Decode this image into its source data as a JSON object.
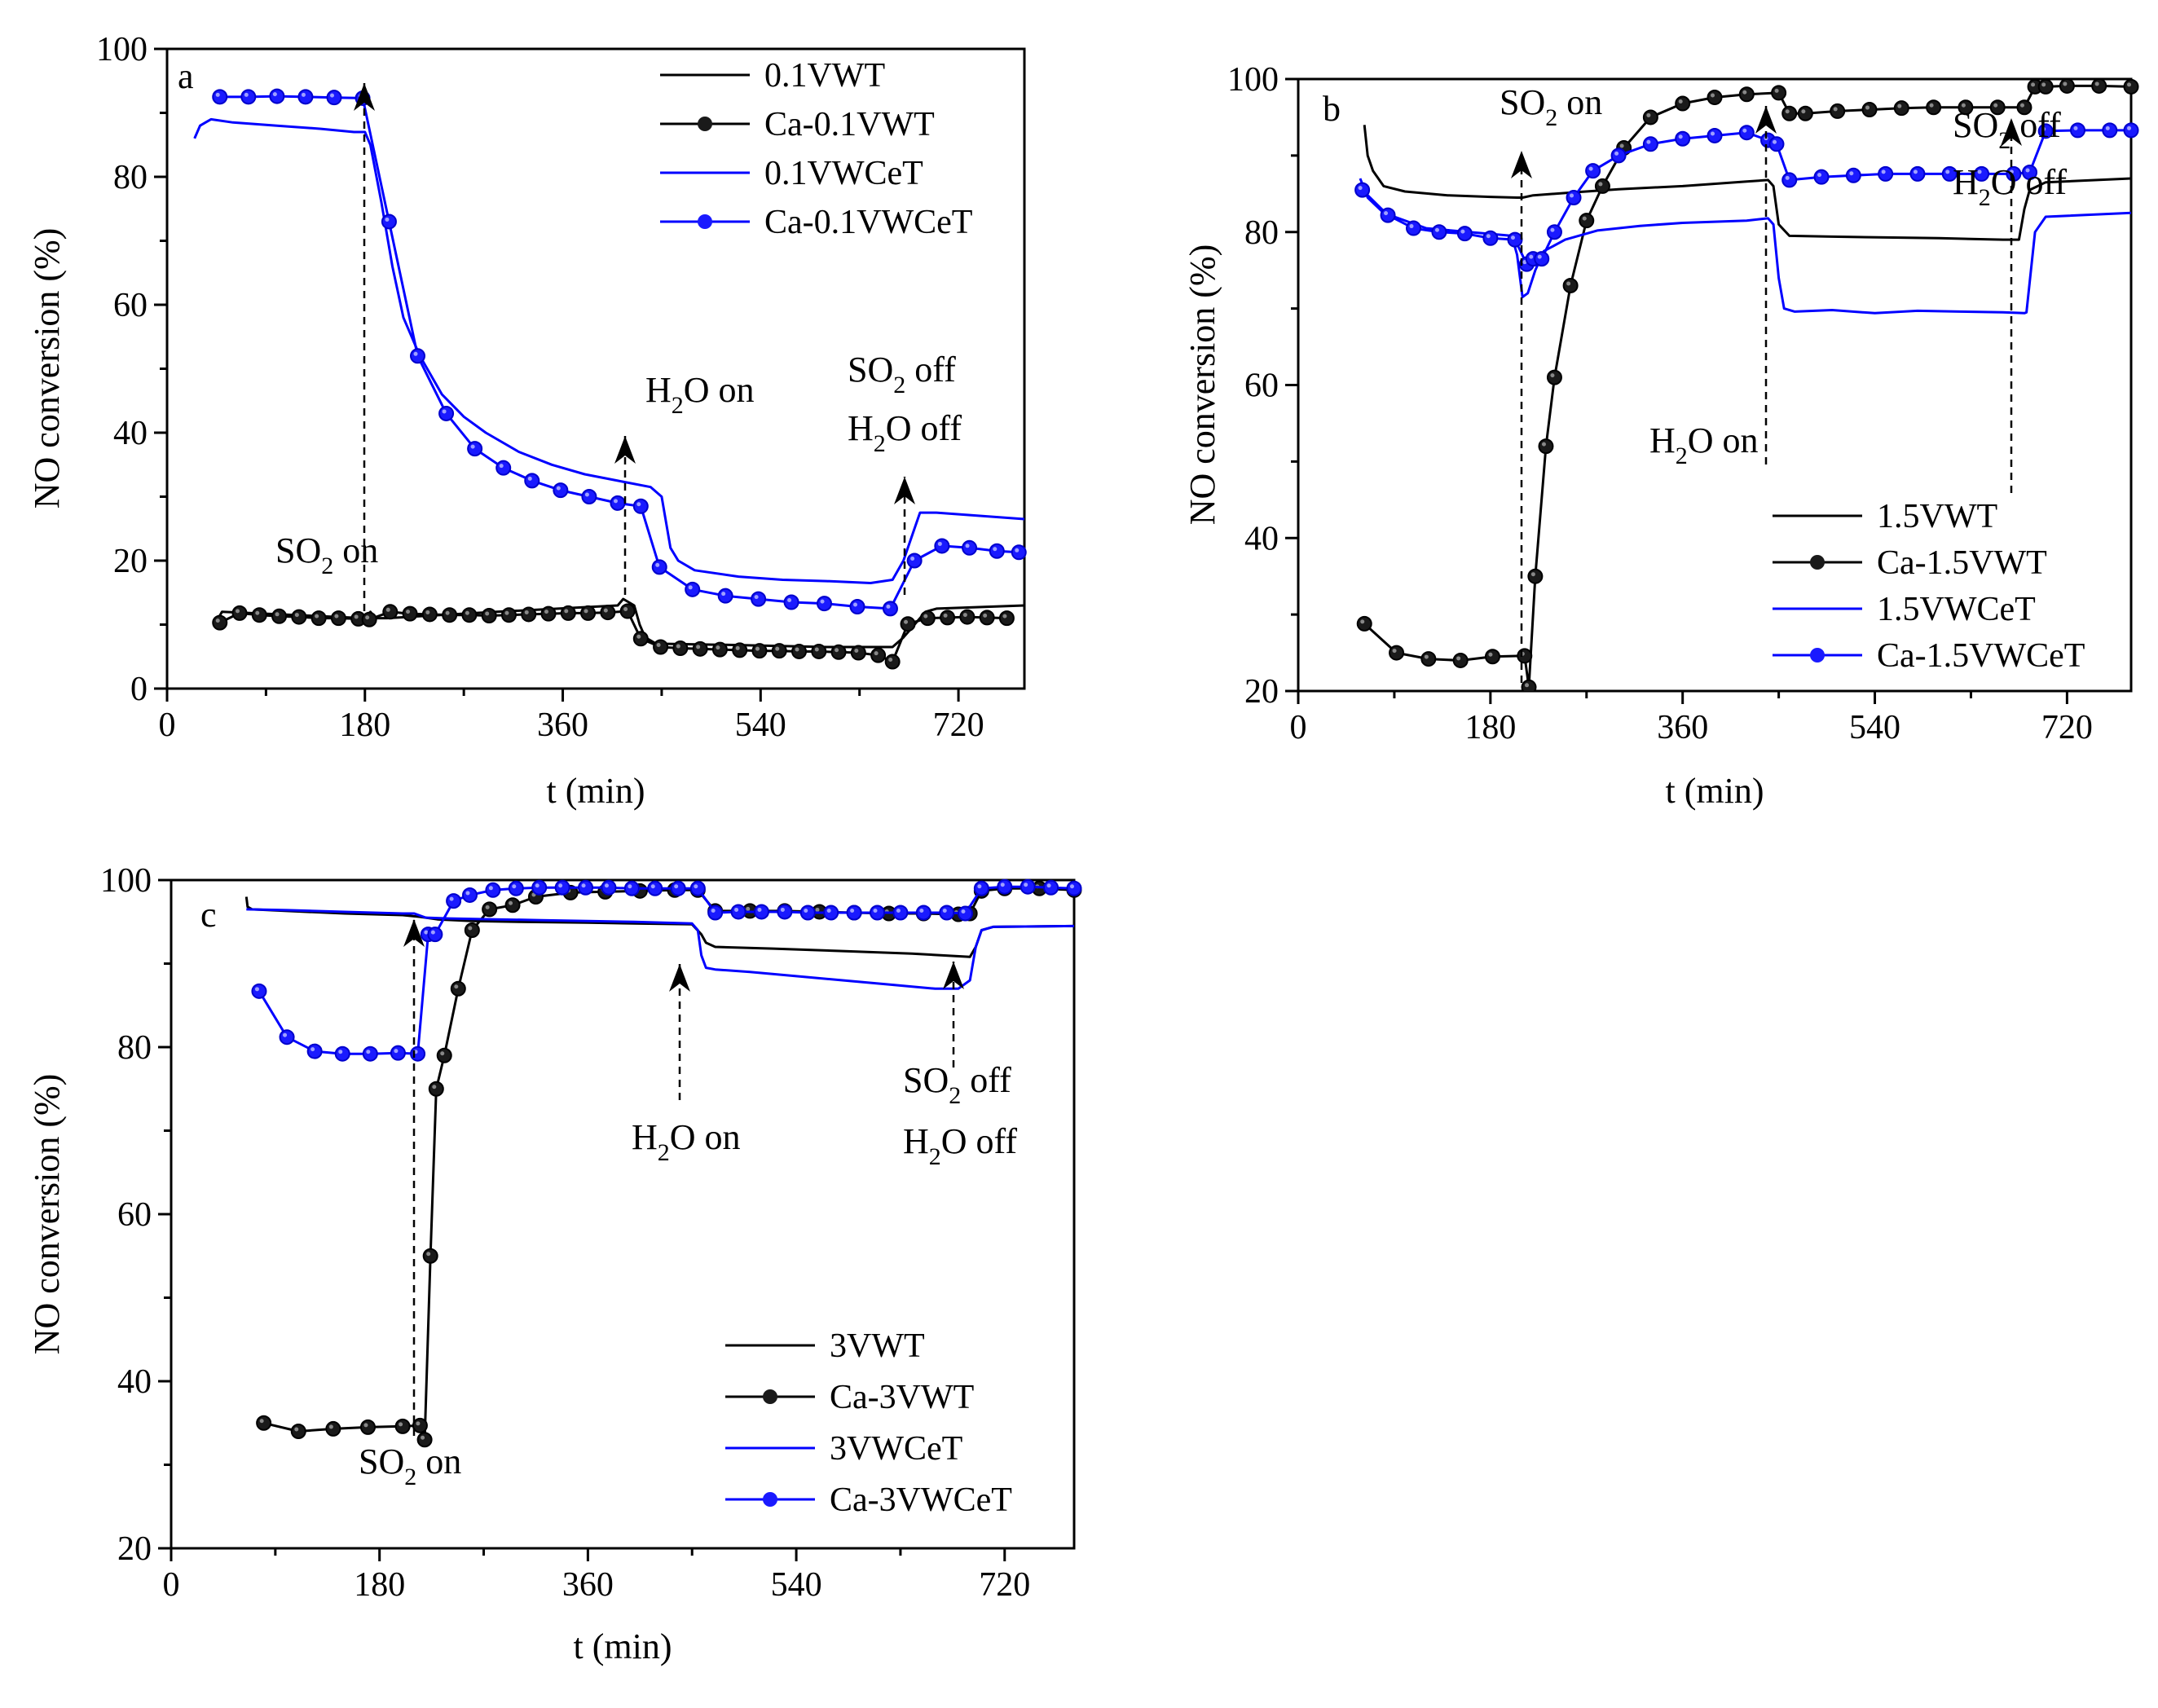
{
  "charts": [
    {
      "panel": "a",
      "type": "line",
      "xlabel": "t (min)",
      "ylabel": "NO conversion (%)",
      "xlim": [
        0,
        780
      ],
      "ylim": [
        0,
        100
      ],
      "xticks": [
        0,
        180,
        360,
        540,
        720
      ],
      "yticks": [
        0,
        20,
        40,
        60,
        80,
        100
      ],
      "legend": "top-right",
      "series": [
        {
          "name": "0.1VWT",
          "color": "#000000",
          "marker": false,
          "x": [
            45,
            50,
            180,
            185,
            190,
            200,
            300,
            410,
            415,
            420,
            425,
            430,
            435,
            440,
            445,
            450,
            520,
            600,
            660,
            670,
            675,
            680,
            685,
            690,
            700,
            780
          ],
          "y": [
            10.5,
            12,
            11,
            12,
            11,
            11,
            12,
            13,
            14,
            13.5,
            13,
            10,
            8,
            7.5,
            7,
            7,
            6.8,
            6.5,
            6.5,
            8,
            9,
            10,
            11,
            12,
            12.5,
            13
          ]
        },
        {
          "name": "Ca-0.1VWT",
          "color": "#000000",
          "marker": true,
          "x": [
            48,
            66,
            84,
            102,
            120,
            138,
            156,
            174,
            184,
            203,
            221,
            239,
            257,
            275,
            293,
            311,
            329,
            347,
            365,
            383,
            401,
            419,
            431,
            449,
            467,
            485,
            503,
            521,
            539,
            557,
            575,
            593,
            611,
            629,
            647,
            660,
            674,
            692,
            710,
            728,
            746,
            764
          ],
          "y": [
            10.3,
            11.8,
            11.5,
            11.3,
            11.2,
            11,
            11,
            10.9,
            10.8,
            12,
            11.7,
            11.6,
            11.5,
            11.5,
            11.4,
            11.5,
            11.6,
            11.7,
            11.8,
            11.8,
            11.9,
            12.1,
            7.8,
            6.5,
            6.3,
            6.2,
            6.1,
            6,
            5.9,
            5.9,
            5.8,
            5.8,
            5.7,
            5.6,
            5.2,
            4.2,
            10.1,
            11,
            11.1,
            11.2,
            11.1,
            11
          ]
        },
        {
          "name": "0.1VWCeT",
          "color": "#0000ff",
          "marker": false,
          "x": [
            25,
            30,
            40,
            60,
            100,
            140,
            170,
            180,
            185,
            195,
            205,
            215,
            230,
            250,
            270,
            290,
            320,
            350,
            380,
            410,
            440,
            450,
            458,
            465,
            480,
            520,
            560,
            600,
            640,
            660,
            670,
            680,
            685,
            700,
            780
          ],
          "y": [
            86,
            88,
            89,
            88.5,
            88,
            87.5,
            87,
            87,
            85,
            76,
            66,
            58,
            52,
            46,
            42.5,
            40,
            37,
            35,
            33.5,
            32.5,
            31.5,
            30,
            22,
            20,
            18.5,
            17.5,
            17,
            16.8,
            16.5,
            17,
            20,
            25,
            27.5,
            27.5,
            26.5
          ]
        },
        {
          "name": "Ca-0.1VWCeT",
          "color": "#0000ff",
          "marker": true,
          "x": [
            48,
            74,
            100,
            126,
            152,
            178,
            202,
            228,
            254,
            280,
            306,
            332,
            358,
            384,
            410,
            431,
            448,
            478,
            508,
            538,
            568,
            598,
            628,
            658,
            680,
            705,
            730,
            755,
            775
          ],
          "y": [
            92.5,
            92.5,
            92.6,
            92.5,
            92.4,
            92.3,
            73,
            52,
            43,
            37.5,
            34.5,
            32.5,
            31,
            30,
            29,
            28.5,
            19,
            15.5,
            14.5,
            14,
            13.5,
            13.3,
            12.8,
            12.5,
            20,
            22.3,
            22,
            21.5,
            21.3
          ]
        }
      ],
      "annotations": [
        {
          "text": "SO",
          "sub": "2",
          "rest": " on"
        },
        {
          "text": "H",
          "sub": "2",
          "rest": "O on"
        },
        {
          "text": "SO",
          "sub": "2",
          "rest": " off"
        },
        {
          "text": "H",
          "sub": "2",
          "rest": "O off"
        }
      ]
    },
    {
      "panel": "b",
      "type": "line",
      "xlabel": "t (min)",
      "ylabel": "NO conversion (%)",
      "xlim": [
        0,
        780
      ],
      "ylim": [
        20,
        100
      ],
      "xticks": [
        0,
        180,
        360,
        540,
        720
      ],
      "yticks": [
        20,
        40,
        60,
        80,
        100
      ],
      "legend": "bottom-right",
      "series": [
        {
          "name": "1.5VWT",
          "color": "#000000",
          "marker": false,
          "x": [
            62,
            65,
            70,
            80,
            100,
            140,
            180,
            205,
            210,
            220,
            260,
            300,
            360,
            420,
            440,
            445,
            450,
            460,
            500,
            600,
            660,
            675,
            680,
            685,
            700,
            780
          ],
          "y": [
            94,
            90,
            88,
            86,
            85.3,
            84.8,
            84.6,
            84.5,
            84.5,
            84.8,
            85.2,
            85.6,
            86,
            86.6,
            86.8,
            86,
            81,
            79.5,
            79.4,
            79.2,
            79,
            79,
            83,
            85.5,
            86.5,
            87
          ]
        },
        {
          "name": "Ca-1.5VWT",
          "color": "#000000",
          "marker": true,
          "x": [
            62,
            92,
            122,
            152,
            182,
            212,
            216,
            222,
            232,
            240,
            255,
            270,
            285,
            305,
            330,
            360,
            390,
            420,
            450,
            460,
            475,
            505,
            535,
            565,
            595,
            625,
            655,
            680,
            690,
            700,
            720,
            750,
            780
          ],
          "y": [
            28.8,
            25,
            24.2,
            24,
            24.5,
            24.6,
            20.5,
            35,
            52,
            61,
            73,
            81.5,
            86,
            91,
            95,
            96.8,
            97.6,
            98,
            98.2,
            95.5,
            95.5,
            95.8,
            96,
            96.2,
            96.3,
            96.3,
            96.3,
            96.3,
            99,
            99,
            99.1,
            99.1,
            99
          ]
        },
        {
          "name": "1.5VWCeT",
          "color": "#0000ff",
          "marker": false,
          "x": [
            58,
            65,
            80,
            120,
            160,
            200,
            205,
            210,
            215,
            222,
            230,
            250,
            280,
            320,
            360,
            420,
            440,
            445,
            450,
            455,
            465,
            500,
            540,
            580,
            620,
            660,
            680,
            682,
            690,
            700,
            780
          ],
          "y": [
            87,
            84.5,
            82.5,
            80.5,
            80,
            79.5,
            77,
            71.5,
            72,
            75,
            77.5,
            79,
            80.2,
            80.8,
            81.2,
            81.5,
            81.8,
            81,
            74,
            70,
            69.6,
            69.8,
            69.4,
            69.7,
            69.6,
            69.5,
            69.4,
            69.5,
            80,
            82,
            82.5
          ]
        },
        {
          "name": "Ca-1.5VWCeT",
          "color": "#0000ff",
          "marker": true,
          "x": [
            60,
            84,
            108,
            132,
            156,
            180,
            203,
            214,
            220,
            228,
            240,
            258,
            276,
            300,
            330,
            360,
            390,
            420,
            440,
            448,
            460,
            490,
            520,
            550,
            580,
            610,
            640,
            670,
            685,
            700,
            730,
            760,
            780
          ],
          "y": [
            85.5,
            82.2,
            80.5,
            80,
            79.8,
            79.2,
            79,
            75.8,
            76.5,
            76.5,
            80,
            84.5,
            88,
            90,
            91.5,
            92.2,
            92.6,
            93,
            92,
            91.5,
            86.8,
            87.2,
            87.4,
            87.6,
            87.6,
            87.6,
            87.6,
            87.6,
            87.8,
            93.2,
            93.3,
            93.3,
            93.3
          ]
        }
      ],
      "annotations": [
        {
          "text": "SO",
          "sub": "2",
          "rest": " on"
        },
        {
          "text": "H",
          "sub": "2",
          "rest": "O on"
        },
        {
          "text": "SO",
          "sub": "2",
          "rest": " off"
        },
        {
          "text": "H",
          "sub": "2",
          "rest": "O off"
        }
      ]
    },
    {
      "panel": "c",
      "type": "line",
      "xlabel": "t (min)",
      "ylabel": "NO conversion (%)",
      "xlim": [
        0,
        780
      ],
      "ylim": [
        20,
        100
      ],
      "xticks": [
        0,
        180,
        360,
        540,
        720
      ],
      "yticks": [
        20,
        40,
        60,
        80,
        100
      ],
      "legend": "bottom-right",
      "series": [
        {
          "name": "3VWT",
          "color": "#000000",
          "marker": false,
          "x": [
            65,
            66,
            70,
            100,
            150,
            200,
            215,
            220,
            230,
            260,
            300,
            360,
            400,
            450,
            458,
            462,
            470,
            520,
            580,
            640,
            690,
            695,
            700,
            710,
            780
          ],
          "y": [
            98,
            96.8,
            96.5,
            96.3,
            96,
            95.8,
            95.6,
            95.5,
            95.3,
            95.1,
            95,
            94.9,
            94.8,
            94.7,
            93.5,
            92.5,
            92,
            91.8,
            91.5,
            91.2,
            90.8,
            92,
            94,
            94.4,
            94.5
          ]
        },
        {
          "name": "Ca-3VWT",
          "color": "#000000",
          "marker": true,
          "x": [
            80,
            110,
            140,
            170,
            200,
            215,
            219,
            224,
            229,
            236,
            248,
            260,
            275,
            295,
            315,
            345,
            375,
            405,
            435,
            455,
            470,
            500,
            530,
            560,
            590,
            620,
            650,
            680,
            690,
            700,
            720,
            750,
            780
          ],
          "y": [
            35,
            34,
            34.3,
            34.5,
            34.6,
            34.7,
            33,
            55,
            75,
            79,
            87,
            94,
            96.5,
            97,
            98,
            98.5,
            98.6,
            98.7,
            98.8,
            98.8,
            96.3,
            96.3,
            96.3,
            96.2,
            96.1,
            96,
            96,
            95.9,
            96,
            98.7,
            99,
            99,
            98.8
          ]
        },
        {
          "name": "3VWCeT",
          "color": "#0000ff",
          "marker": false,
          "x": [
            65,
            100,
            150,
            200,
            210,
            220,
            240,
            280,
            320,
            360,
            400,
            450,
            455,
            458,
            462,
            470,
            500,
            540,
            580,
            620,
            660,
            680,
            690,
            695,
            700,
            710,
            780
          ],
          "y": [
            96.5,
            96.4,
            96.2,
            96,
            96,
            95.5,
            95.4,
            95.3,
            95.2,
            95.1,
            95,
            94.8,
            94,
            91,
            89.5,
            89.3,
            89,
            88.5,
            88,
            87.5,
            87,
            87,
            88,
            92,
            94,
            94.4,
            94.5
          ]
        },
        {
          "name": "Ca-3VWCeT",
          "color": "#0000ff",
          "marker": true,
          "x": [
            76,
            100,
            124,
            148,
            172,
            196,
            213,
            222,
            228,
            244,
            258,
            278,
            298,
            318,
            338,
            358,
            378,
            398,
            418,
            438,
            455,
            470,
            490,
            510,
            530,
            550,
            570,
            590,
            610,
            630,
            650,
            670,
            686,
            700,
            720,
            740,
            760,
            780
          ],
          "y": [
            86.7,
            81.2,
            79.5,
            79.2,
            79.2,
            79.3,
            79.2,
            93.5,
            93.5,
            97.5,
            98.2,
            98.8,
            99,
            99.1,
            99.1,
            99.1,
            99.1,
            99,
            99,
            99,
            99,
            96.1,
            96.2,
            96.2,
            96.2,
            96.1,
            96.1,
            96.1,
            96.1,
            96.1,
            96.1,
            96.1,
            96,
            99,
            99.2,
            99.2,
            99.1,
            99
          ]
        }
      ],
      "annotations": [
        {
          "text": "SO",
          "sub": "2",
          "rest": " on"
        },
        {
          "text": "H",
          "sub": "2",
          "rest": "O on"
        },
        {
          "text": "SO",
          "sub": "2",
          "rest": " off"
        },
        {
          "text": "H",
          "sub": "2",
          "rest": "O off"
        }
      ]
    }
  ]
}
